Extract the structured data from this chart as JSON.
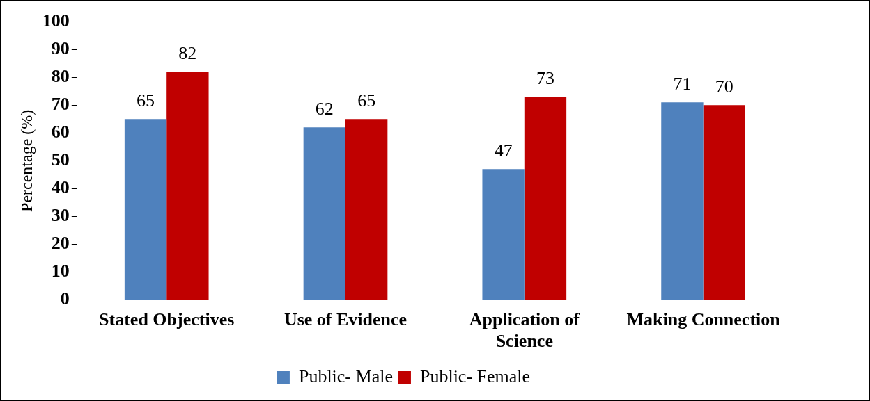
{
  "chart_data": {
    "type": "bar",
    "ylabel": "Percentage (%)",
    "categories": [
      "Stated Objectives",
      "Use of Evidence",
      "Application of Science",
      "Making Connection"
    ],
    "series": [
      {
        "name": "Public- Male",
        "color": "#4f81bd",
        "values": [
          65,
          62,
          47,
          71
        ]
      },
      {
        "name": "Public- Female",
        "color": "#c00000",
        "values": [
          82,
          65,
          73,
          70
        ]
      }
    ],
    "ylim": [
      0,
      100
    ],
    "yticks": [
      0,
      10,
      20,
      30,
      40,
      50,
      60,
      70,
      80,
      90,
      100
    ],
    "grid": false,
    "legend": "bottom",
    "data_labels": true
  }
}
